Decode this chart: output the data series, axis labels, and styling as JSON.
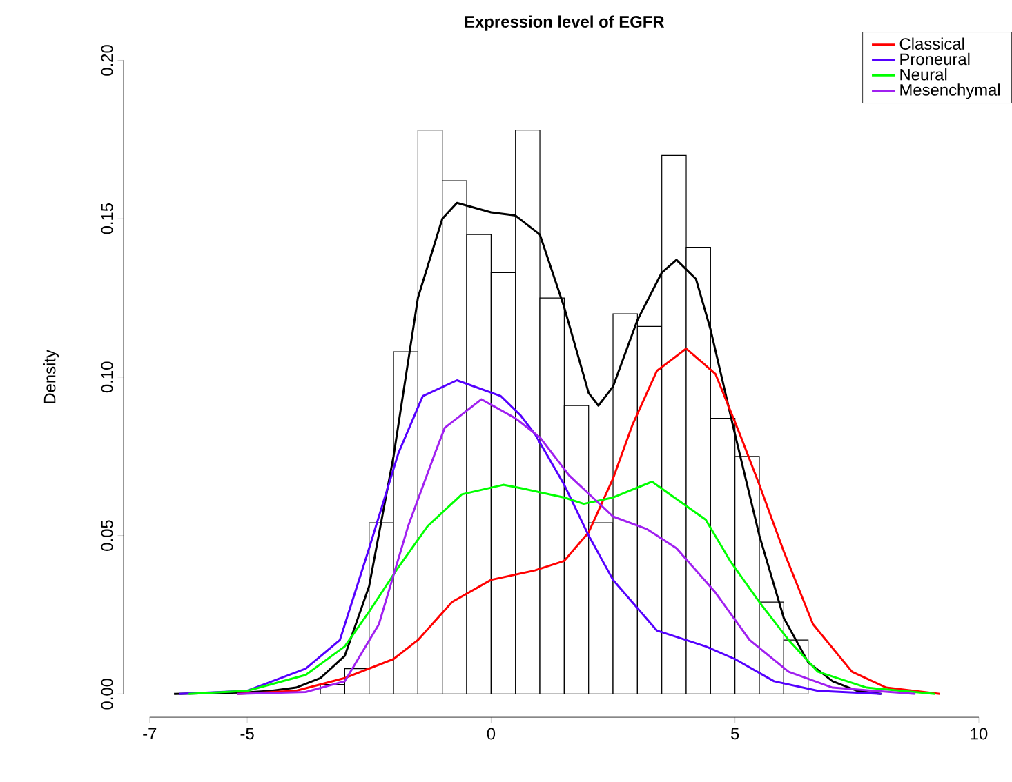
{
  "chart_data": {
    "type": "histogram",
    "title": "Expression level of EGFR",
    "ylabel": "Density",
    "bins": [
      -3.5,
      -3,
      -2.5,
      -2,
      -1.5,
      -1,
      -0.5,
      0,
      0.5,
      1,
      1.5,
      2,
      2.5,
      3,
      3.5,
      4,
      4.5,
      5,
      5.5,
      6,
      6.5
    ],
    "values": [
      0.003,
      0.008,
      0.054,
      0.108,
      0.178,
      0.162,
      0.145,
      0.133,
      0.178,
      0.125,
      0.091,
      0.054,
      0.12,
      0.116,
      0.17,
      0.141,
      0.087,
      0.075,
      0.029,
      0.017
    ],
    "color": "#ffffff",
    "series": [
      {
        "type": "line",
        "color": "#000000",
        "x": [
          -6.5,
          -5,
          -4.5,
          -4,
          -3.5,
          -3,
          -2.5,
          -2,
          -1.5,
          -1,
          -0.7,
          0,
          0.5,
          1,
          1.5,
          2,
          2.2,
          2.5,
          3,
          3.5,
          3.8,
          4.2,
          4.5,
          5,
          5.5,
          6,
          6.5,
          7,
          7.5,
          8
        ],
        "values": [
          0,
          0.0005,
          0.001,
          0.002,
          0.005,
          0.012,
          0.034,
          0.075,
          0.125,
          0.15,
          0.155,
          0.152,
          0.151,
          0.145,
          0.122,
          0.095,
          0.091,
          0.097,
          0.118,
          0.133,
          0.137,
          0.131,
          0.115,
          0.082,
          0.05,
          0.024,
          0.01,
          0.004,
          0.001,
          0
        ]
      },
      {
        "type": "line",
        "name": "Classical",
        "color": "#ff0000",
        "x": [
          -5.2,
          -4,
          -3,
          -2,
          -1.5,
          -0.8,
          0,
          0.9,
          1.5,
          2,
          2.5,
          2.9,
          3.4,
          4,
          4.6,
          5.1,
          5.5,
          6,
          6.6,
          7.4,
          8.1,
          9.2
        ],
        "values": [
          0,
          0.001,
          0.005,
          0.011,
          0.017,
          0.029,
          0.036,
          0.039,
          0.042,
          0.051,
          0.068,
          0.085,
          0.102,
          0.109,
          0.101,
          0.082,
          0.066,
          0.045,
          0.022,
          0.007,
          0.002,
          0
        ]
      },
      {
        "type": "line",
        "name": "Proneural",
        "color": "#5500ff",
        "x": [
          -6.4,
          -5,
          -3.8,
          -3.1,
          -2.5,
          -1.9,
          -1.4,
          -0.7,
          0.2,
          0.6,
          0.9,
          1.5,
          2,
          2.5,
          3.4,
          4.4,
          5,
          5.8,
          6.7,
          8
        ],
        "values": [
          0,
          0.001,
          0.008,
          0.017,
          0.046,
          0.076,
          0.094,
          0.099,
          0.094,
          0.088,
          0.082,
          0.066,
          0.05,
          0.036,
          0.02,
          0.015,
          0.011,
          0.004,
          0.001,
          0
        ]
      },
      {
        "type": "line",
        "name": "Neural",
        "color": "#00ff00",
        "x": [
          -6.2,
          -5,
          -3.8,
          -3,
          -2.5,
          -1.9,
          -1.3,
          -0.6,
          0.25,
          0.6,
          1.5,
          1.9,
          2.5,
          3.3,
          4.4,
          4.9,
          5.5,
          6.1,
          6.7,
          7.7,
          9.1
        ],
        "values": [
          0,
          0.001,
          0.006,
          0.015,
          0.026,
          0.04,
          0.053,
          0.063,
          0.066,
          0.065,
          0.062,
          0.06,
          0.062,
          0.067,
          0.055,
          0.042,
          0.029,
          0.017,
          0.007,
          0.002,
          0
        ]
      },
      {
        "type": "line",
        "name": "Mesenchymal",
        "color": "#a020f0",
        "x": [
          -5.2,
          -3.8,
          -3,
          -2.3,
          -1.7,
          -1.15,
          -0.95,
          -0.2,
          0.5,
          1,
          1.6,
          2.5,
          3.2,
          3.8,
          4.6,
          5.3,
          6.1,
          7,
          8.7
        ],
        "values": [
          0,
          0.0006,
          0.004,
          0.022,
          0.053,
          0.076,
          0.084,
          0.093,
          0.087,
          0.081,
          0.069,
          0.056,
          0.052,
          0.046,
          0.032,
          0.017,
          0.007,
          0.002,
          0
        ]
      }
    ],
    "xlim": [
      -7,
      10
    ],
    "xticks": [
      -7,
      -5,
      0,
      5,
      10
    ],
    "ylim": [
      0,
      0.2
    ],
    "yticks": [
      {
        "value": 0,
        "label": "0.00"
      },
      {
        "value": 0.05,
        "label": "0.05"
      },
      {
        "value": 0.1,
        "label": "0.10"
      },
      {
        "value": 0.15,
        "label": "0.15"
      },
      {
        "value": 0.2,
        "label": "0.20"
      }
    ],
    "legend": "top right",
    "grid": false,
    "marker": "none",
    "line_style": "solid"
  }
}
